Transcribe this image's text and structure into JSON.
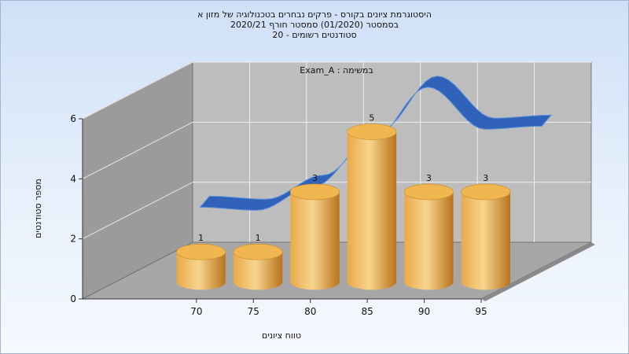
{
  "chart_data": {
    "type": "bar",
    "title_lines": [
      "היסטוגרמת ציונים בקורס - פרקים נבחרים בטכנולוגיה של מזון א",
      "בסמסטר  (01/2020)  סמסטר חורף  2020/21",
      "סטודנטים רשומים - 20"
    ],
    "annotation": "במשימה : Exam_A",
    "xlabel": "טווח ציונים",
    "ylabel": "מספר סטודנטים",
    "x_ticks": [
      "70",
      "75",
      "80",
      "85",
      "90",
      "95"
    ],
    "bins": [
      {
        "from": 65,
        "to": 70,
        "value": 1
      },
      {
        "from": 70,
        "to": 75,
        "value": 1
      },
      {
        "from": 75,
        "to": 80,
        "value": 3
      },
      {
        "from": 80,
        "to": 85,
        "value": 5
      },
      {
        "from": 85,
        "to": 90,
        "value": 3
      },
      {
        "from": 90,
        "to": 95,
        "value": 3
      }
    ],
    "curve": {
      "x": [
        65,
        70,
        75,
        80,
        85,
        90,
        95
      ],
      "y": [
        2.2,
        2.1,
        2.9,
        4.4,
        6.2,
        4.8,
        4.9
      ]
    },
    "y_ticks": [
      0,
      2,
      4,
      6
    ],
    "ylim": [
      0,
      6
    ],
    "xlim": [
      60,
      95
    ],
    "colors": {
      "bar_light": "#f8d58e",
      "bar_mid": "#e8a94a",
      "bar_dark": "#b8731c",
      "bar_top": "#f0b64f",
      "curve_top": "#5b8fdc",
      "curve_front": "#2f62b8",
      "back_wall": "#bdbdbd",
      "left_wall": "#9b9b9b",
      "floor": "#a7a7a7"
    }
  }
}
